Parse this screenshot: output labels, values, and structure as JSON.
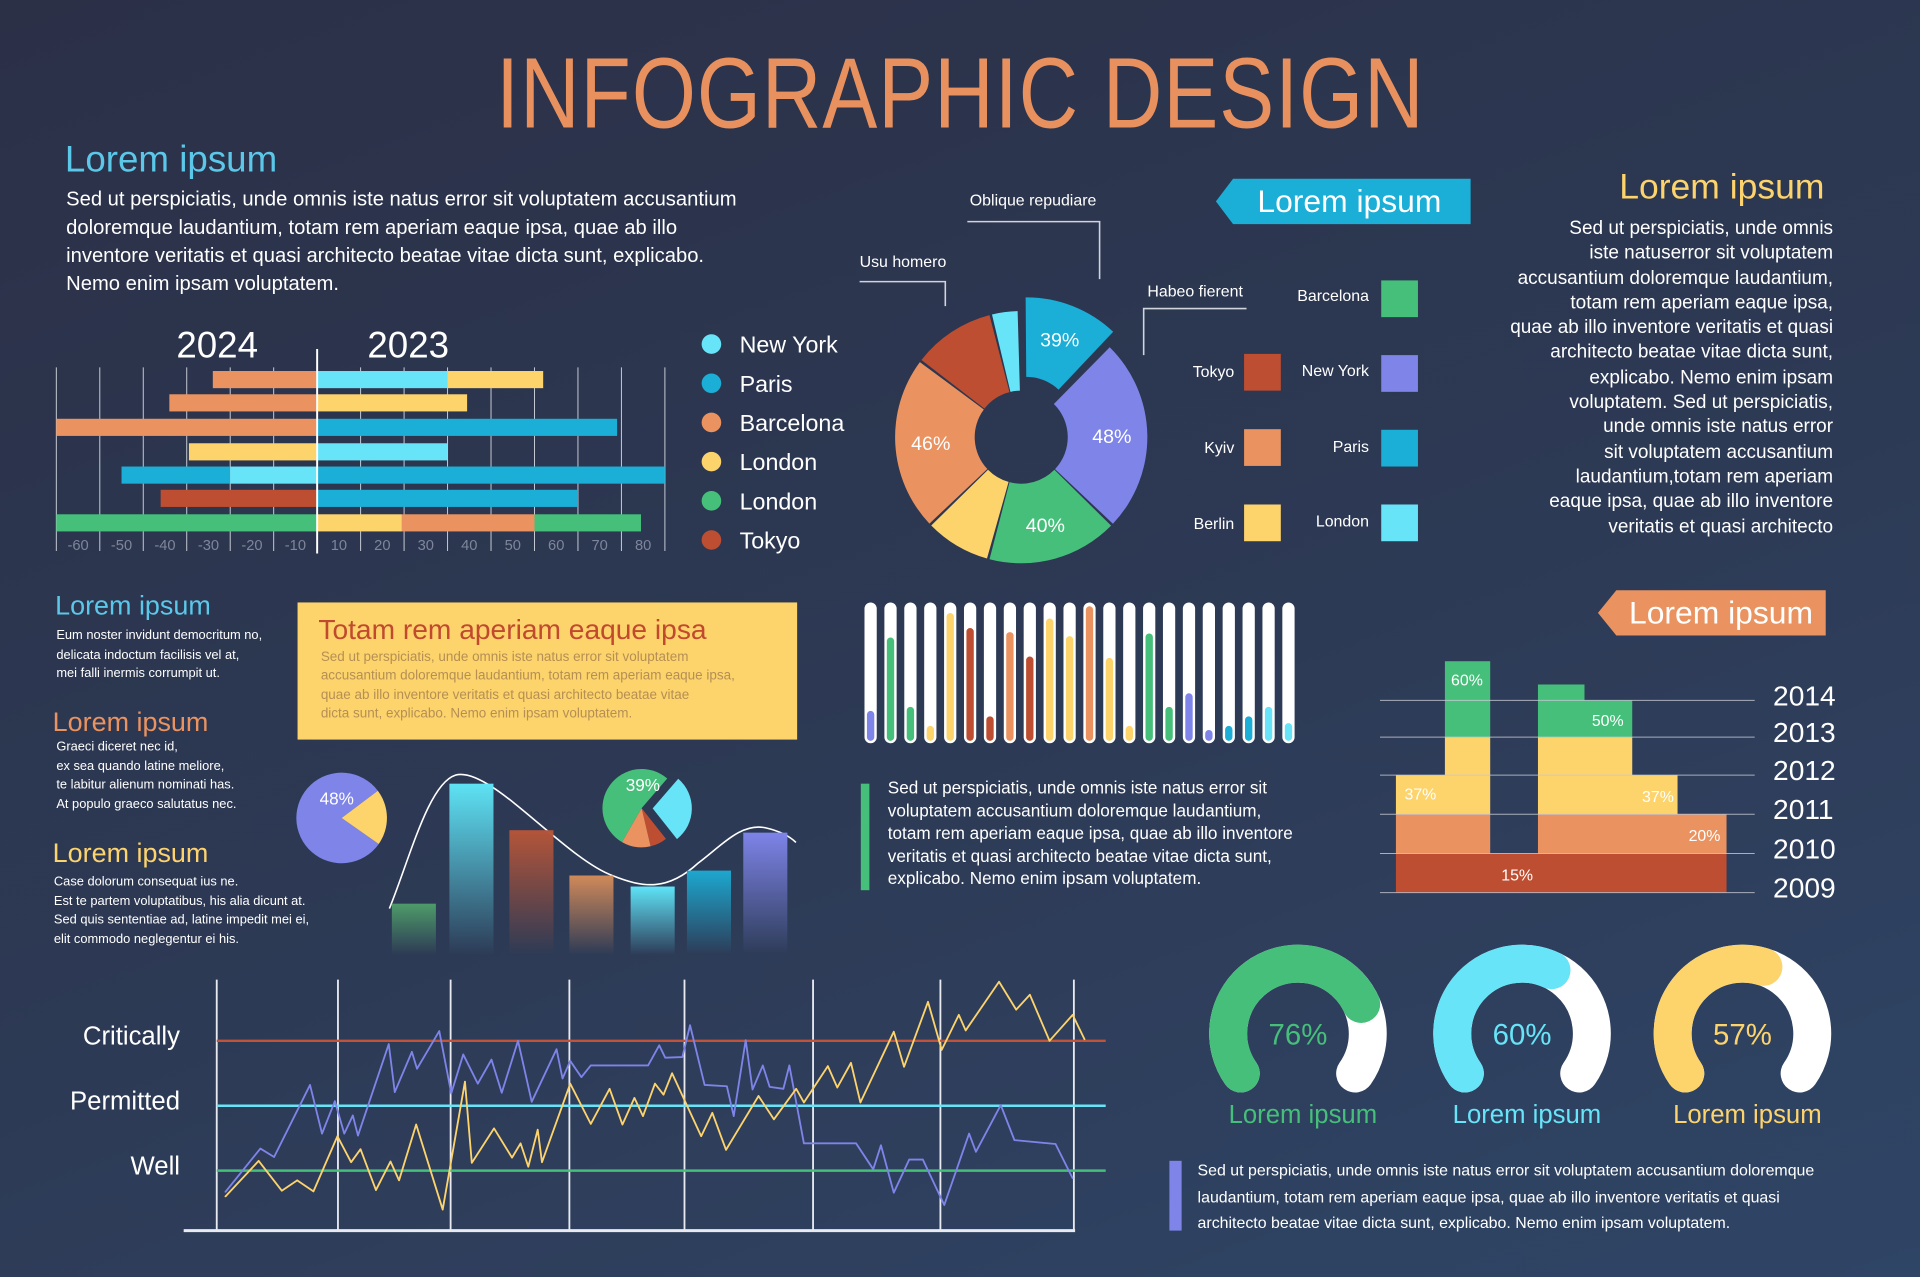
{
  "title": "INFOGRAPHIC DESIGN",
  "intro": {
    "heading": "Lorem ipsum",
    "lines": [
      "Sed ut perspiciatis, unde omnis iste natus error sit voluptatem accusantium",
      "doloremque laudantium, totam rem aperiam eaque ipsa, quae ab illo",
      "inventore veritatis et quasi architecto beatae vitae dicta sunt, explicabo.",
      "Nemo enim ipsam voluptatem."
    ]
  },
  "right_block": {
    "heading": "Lorem ipsum",
    "lines": [
      "Sed ut perspiciatis, unde omnis",
      "iste natuserror sit voluptatem",
      "accusantium doloremque laudantium,",
      "totam rem aperiam eaque ipsa,",
      "quae ab illo inventore veritatis et quasi",
      "architecto beatae vitae dicta sunt,",
      "explicabo. Nemo enim ipsam",
      "voluptatem. Sed ut perspiciatis,",
      "unde omnis iste natus error",
      "sit voluptatem accusantium",
      "laudantium,totam rem aperiam",
      "eaque ipsa, quae ab illo inventore",
      "veritatis et quasi architecto"
    ]
  },
  "side_notes": [
    {
      "heading": "Lorem ipsum",
      "lines": [
        "Eum noster invidunt democritum no,",
        "delicata indoctum facilisis vel at,",
        "mei falli inermis corrumpit ut."
      ]
    },
    {
      "heading": "Lorem ipsum",
      "lines": [
        "Graeci diceret nec id,",
        "ex sea quando latine meliore,",
        "te labitur alienum nominati has.",
        "At populo graeco salutatus nec."
      ]
    },
    {
      "heading": "Lorem ipsum",
      "lines": [
        "Case dolorum consequat ius ne.",
        "Est te partem voluptatibus, his alia dicunt at.",
        "Sed quis sententiae ad, latine impedit mei ei,",
        "elit commodo neglegentur ei his."
      ]
    }
  ],
  "callout_box": {
    "heading": "Totam rem aperiam eaque ipsa",
    "lines": [
      "Sed ut perspiciatis, unde omnis iste natus error sit voluptatem",
      "accusantium doloremque laudantium, totam rem aperiam eaque ipsa,",
      "quae ab illo inventore veritatis et quasi architecto beatae vitae",
      "dicta sunt, explicabo. Nemo enim ipsam voluptatem."
    ]
  },
  "middle_text": {
    "lines": [
      "Sed ut perspiciatis, unde omnis iste natus error sit",
      "voluptatem accusantium doloremque laudantium,",
      "totam rem aperiam eaque ipsa, quae ab illo inventore",
      "veritatis et quasi architecto beatae vitae dicta sunt,",
      "explicabo. Nemo enim ipsam voluptatem."
    ]
  },
  "bottom_text": {
    "lines": [
      "Sed ut perspiciatis, unde omnis iste natus error sit voluptatem accusantium doloremque",
      "laudantium, totam rem aperiam eaque ipsa, quae ab illo inventore veritatis et quasi",
      "architecto beatae vitae dicta sunt, explicabo. Nemo enim ipsam voluptatem."
    ]
  },
  "colors": {
    "light_cyan": "#67e4f7",
    "blue": "#1baed6",
    "orange": "#ea9360",
    "yellow": "#fdd36c",
    "green": "#46bf7a",
    "red": "#be4e31",
    "purple": "#7e84e8",
    "title": "#e8915e"
  },
  "chart_data": [
    {
      "id": "diverging",
      "type": "bar",
      "orientation": "horizontal-diverging",
      "left_label": "2024",
      "right_label": "2023",
      "xlim": [
        -60,
        80
      ],
      "ticks": [
        -60,
        -50,
        -40,
        -30,
        -20,
        -10,
        10,
        20,
        30,
        40,
        50,
        60,
        70,
        80
      ],
      "legend": [
        {
          "label": "New York",
          "color": "#67e4f7"
        },
        {
          "label": "Paris",
          "color": "#1baed6"
        },
        {
          "label": "Barcelona",
          "color": "#ea9360"
        },
        {
          "label": "London",
          "color": "#fdd36c"
        },
        {
          "label": "London",
          "color": "#46bf7a"
        },
        {
          "label": "Tokyo",
          "color": "#be4e31"
        }
      ],
      "rows": [
        [
          {
            "from": -24,
            "to": 0,
            "color": "#ea9360"
          },
          {
            "from": 0,
            "to": 30,
            "color": "#67e4f7"
          },
          {
            "from": 30,
            "to": 52,
            "color": "#fdd36c"
          }
        ],
        [
          {
            "from": -34,
            "to": 0,
            "color": "#ea9360"
          },
          {
            "from": 0,
            "to": 34.5,
            "color": "#fdd36c"
          }
        ],
        [
          {
            "from": -60,
            "to": 0,
            "color": "#ea9360"
          },
          {
            "from": 0,
            "to": 69,
            "color": "#1baed6"
          }
        ],
        [
          {
            "from": -29.5,
            "to": 0,
            "color": "#fdd36c"
          },
          {
            "from": 0,
            "to": 30,
            "color": "#67e4f7"
          }
        ],
        [
          {
            "from": -45,
            "to": -20,
            "color": "#1baed6"
          },
          {
            "from": -20,
            "to": 0,
            "color": "#67e4f7"
          },
          {
            "from": 0,
            "to": 80,
            "color": "#1baed6"
          }
        ],
        [
          {
            "from": -36,
            "to": 0,
            "color": "#be4e31"
          },
          {
            "from": 0,
            "to": 60,
            "color": "#1baed6"
          }
        ],
        [
          {
            "from": -60,
            "to": 0,
            "color": "#46bf7a"
          },
          {
            "from": 0,
            "to": 19.5,
            "color": "#fdd36c"
          },
          {
            "from": 19.5,
            "to": 50,
            "color": "#ea9360"
          },
          {
            "from": 50,
            "to": 74.5,
            "color": "#46bf7a"
          }
        ]
      ]
    },
    {
      "id": "donut",
      "type": "pie",
      "banner": "Lorem ipsum",
      "callouts": [
        "Oblique repudiare",
        "Usu homero",
        "Habeo fierent"
      ],
      "slices": [
        {
          "share": 0.036,
          "color": "#67e4f7",
          "label": ""
        },
        {
          "share": 0.125,
          "color": "#1baed6",
          "label": "39%",
          "exploded": true
        },
        {
          "share": 0.25,
          "color": "#7e84e8",
          "label": "48%"
        },
        {
          "share": 0.17,
          "color": "#46bf7a",
          "label": "40%"
        },
        {
          "share": 0.086,
          "color": "#fdd36c",
          "label": ""
        },
        {
          "share": 0.225,
          "color": "#ea9360",
          "label": "46%"
        },
        {
          "share": 0.108,
          "color": "#be4e31",
          "label": ""
        }
      ],
      "legend_left": [
        {
          "label": "Tokyo",
          "color": "#be4e31"
        },
        {
          "label": "Kyiv",
          "color": "#ea9360"
        },
        {
          "label": "Berlin",
          "color": "#fdd36c"
        }
      ],
      "legend_right": [
        {
          "label": "Barcelona",
          "color": "#46bf7a"
        },
        {
          "label": "New York",
          "color": "#7e84e8"
        },
        {
          "label": "Paris",
          "color": "#1baed6"
        },
        {
          "label": "London",
          "color": "#67e4f7"
        }
      ]
    },
    {
      "id": "mini-pie-1",
      "type": "pie",
      "label": "48%",
      "slices": [
        {
          "share": 0.8,
          "color": "#7e84e8"
        },
        {
          "share": 0.2,
          "color": "#fdd36c"
        }
      ]
    },
    {
      "id": "mini-pie-2",
      "type": "pie",
      "label": "39%",
      "slices": [
        {
          "share": 0.53,
          "color": "#46bf7a"
        },
        {
          "share": 0.28,
          "color": "#67e4f7",
          "exploded": true
        },
        {
          "share": 0.07,
          "color": "#be4e31"
        },
        {
          "share": 0.12,
          "color": "#ea9360"
        }
      ]
    },
    {
      "id": "fade-bars",
      "type": "bar",
      "values": [
        42,
        140,
        102,
        65,
        56,
        69,
        100
      ],
      "colors": [
        "#4e9b6a",
        "#5ee3f5",
        "#b4553a",
        "#d08a5a",
        "#5fe3f7",
        "#1da8cf",
        "#7e84e8"
      ]
    },
    {
      "id": "tubes",
      "type": "bar",
      "values": [
        0.22,
        0.76,
        0.25,
        0.11,
        0.94,
        0.83,
        0.18,
        0.8,
        0.62,
        0.9,
        0.77,
        0.99,
        0.61,
        0.11,
        0.79,
        0.25,
        0.35,
        0.08,
        0.11,
        0.18,
        0.25,
        0.13
      ],
      "colors": [
        "#7e84e8",
        "#46bf7a",
        "#46bf7a",
        "#fdd36c",
        "#fdd36c",
        "#be4e31",
        "#be4e31",
        "#ea9360",
        "#be4e31",
        "#fdd36c",
        "#fdd36c",
        "#ea9360",
        "#fdd36c",
        "#fdd36c",
        "#46bf7a",
        "#46bf7a",
        "#7e84e8",
        "#7e84e8",
        "#1baed6",
        "#1baed6",
        "#67e4f7",
        "#67e4f7"
      ]
    },
    {
      "id": "stacked-years",
      "type": "bar",
      "banner": "Lorem ipsum",
      "years": [
        "2014",
        "2013",
        "2012",
        "2011",
        "2010",
        "2009"
      ],
      "labels": [
        "60%",
        "50%",
        "37%",
        "37%",
        "20%",
        "15%"
      ]
    },
    {
      "id": "line",
      "type": "line",
      "levels": [
        {
          "label": "Critically",
          "value": 3,
          "color": "#c0533a"
        },
        {
          "label": "Permitted",
          "value": 2,
          "color": "#67e4f7"
        },
        {
          "label": "Well",
          "value": 1,
          "color": "#46bf7a"
        }
      ],
      "xlim": [
        0,
        100
      ],
      "series": [
        {
          "name": "purple",
          "color": "#7e84e8",
          "points": [
            [
              1,
              0.67
            ],
            [
              5.1,
              1.34
            ],
            [
              6.7,
              1.21
            ],
            [
              10.9,
              2.32
            ],
            [
              12.3,
              1.57
            ],
            [
              13.8,
              2.07
            ],
            [
              14.9,
              1.57
            ],
            [
              15.9,
              1.85
            ],
            [
              16.5,
              1.54
            ],
            [
              20.1,
              2.95
            ],
            [
              20.8,
              2.21
            ],
            [
              22.8,
              2.83
            ],
            [
              23.4,
              2.57
            ],
            [
              26,
              3.15
            ],
            [
              27.4,
              2.19
            ],
            [
              28.8,
              2.79
            ],
            [
              30.5,
              2.34
            ],
            [
              32.1,
              2.71
            ],
            [
              33.3,
              2.2
            ],
            [
              35.2,
              3
            ],
            [
              36.8,
              2.06
            ],
            [
              39.7,
              2.87
            ],
            [
              40.4,
              2.42
            ],
            [
              41.3,
              2.69
            ],
            [
              42.6,
              2.44
            ],
            [
              43.7,
              2.62
            ],
            [
              50.4,
              2.62
            ],
            [
              51.7,
              2.93
            ],
            [
              52.4,
              2.74
            ],
            [
              54.4,
              2.75
            ],
            [
              55.3,
              3.24
            ],
            [
              57,
              2.32
            ],
            [
              59.6,
              2.3
            ],
            [
              60.4,
              1.84
            ],
            [
              61.8,
              3.01
            ],
            [
              62.6,
              2.25
            ],
            [
              63.8,
              2.62
            ],
            [
              64.6,
              2.29
            ],
            [
              66.2,
              2.26
            ],
            [
              66.9,
              2.62
            ],
            [
              68.6,
              1.42
            ],
            [
              74.7,
              1.42
            ],
            [
              76.7,
              1.02
            ],
            [
              77.6,
              1.39
            ],
            [
              79.1,
              0.66
            ],
            [
              80.9,
              1.17
            ],
            [
              82.5,
              1.17
            ],
            [
              85,
              0.47
            ],
            [
              87.9,
              1.57
            ],
            [
              88.7,
              1.29
            ],
            [
              91.6,
              2.01
            ],
            [
              93.2,
              1.47
            ],
            [
              98,
              1.41
            ],
            [
              100,
              0.88
            ]
          ]
        },
        {
          "name": "yellow",
          "color": "#fdd36c",
          "points": [
            [
              1,
              0.6
            ],
            [
              4.9,
              1.15
            ],
            [
              7.6,
              0.69
            ],
            [
              9.4,
              0.85
            ],
            [
              11.3,
              0.68
            ],
            [
              14.1,
              1.53
            ],
            [
              15.7,
              1.13
            ],
            [
              16.8,
              1.33
            ],
            [
              18.6,
              0.7
            ],
            [
              20.3,
              1.14
            ],
            [
              21.3,
              0.85
            ],
            [
              23.3,
              1.71
            ],
            [
              26.4,
              0.4
            ],
            [
              29,
              2.37
            ],
            [
              29.8,
              1.12
            ],
            [
              32.4,
              1.65
            ],
            [
              34.5,
              1.2
            ],
            [
              35.5,
              1.42
            ],
            [
              36.4,
              1.06
            ],
            [
              37.5,
              1.63
            ],
            [
              38,
              1.13
            ],
            [
              41.3,
              2.34
            ],
            [
              43.7,
              1.72
            ],
            [
              45.9,
              2.26
            ],
            [
              47.4,
              1.71
            ],
            [
              48.8,
              2.12
            ],
            [
              49.8,
              1.84
            ],
            [
              51.2,
              2.34
            ],
            [
              52.2,
              2.17
            ],
            [
              53.2,
              2.5
            ],
            [
              56.6,
              1.53
            ],
            [
              57.9,
              1.89
            ],
            [
              59.5,
              1.32
            ],
            [
              63.3,
              2.15
            ],
            [
              65.1,
              1.79
            ],
            [
              67.7,
              2.26
            ],
            [
              68.6,
              2.05
            ],
            [
              71.4,
              2.61
            ],
            [
              72.5,
              2.28
            ],
            [
              74.1,
              2.66
            ],
            [
              75.2,
              2.05
            ],
            [
              79.1,
              3.14
            ],
            [
              80.3,
              2.6
            ],
            [
              83.1,
              3.6
            ],
            [
              84.7,
              2.86
            ],
            [
              86.7,
              3.4
            ],
            [
              87.5,
              3.16
            ],
            [
              91.4,
              3.91
            ],
            [
              93.4,
              3.48
            ],
            [
              95,
              3.71
            ],
            [
              97.3,
              3
            ],
            [
              100,
              3.4
            ],
            [
              101.4,
              3.02
            ]
          ]
        }
      ]
    },
    {
      "id": "gauges",
      "type": "pie",
      "items": [
        {
          "value": 0.76,
          "label": "76%",
          "caption": "Lorem ipsum",
          "color": "#46bf7a"
        },
        {
          "value": 0.6,
          "label": "60%",
          "caption": "Lorem ipsum",
          "color": "#67e4f7"
        },
        {
          "value": 0.57,
          "label": "57%",
          "caption": "Lorem ipsum",
          "color": "#fdd36c"
        }
      ]
    }
  ]
}
